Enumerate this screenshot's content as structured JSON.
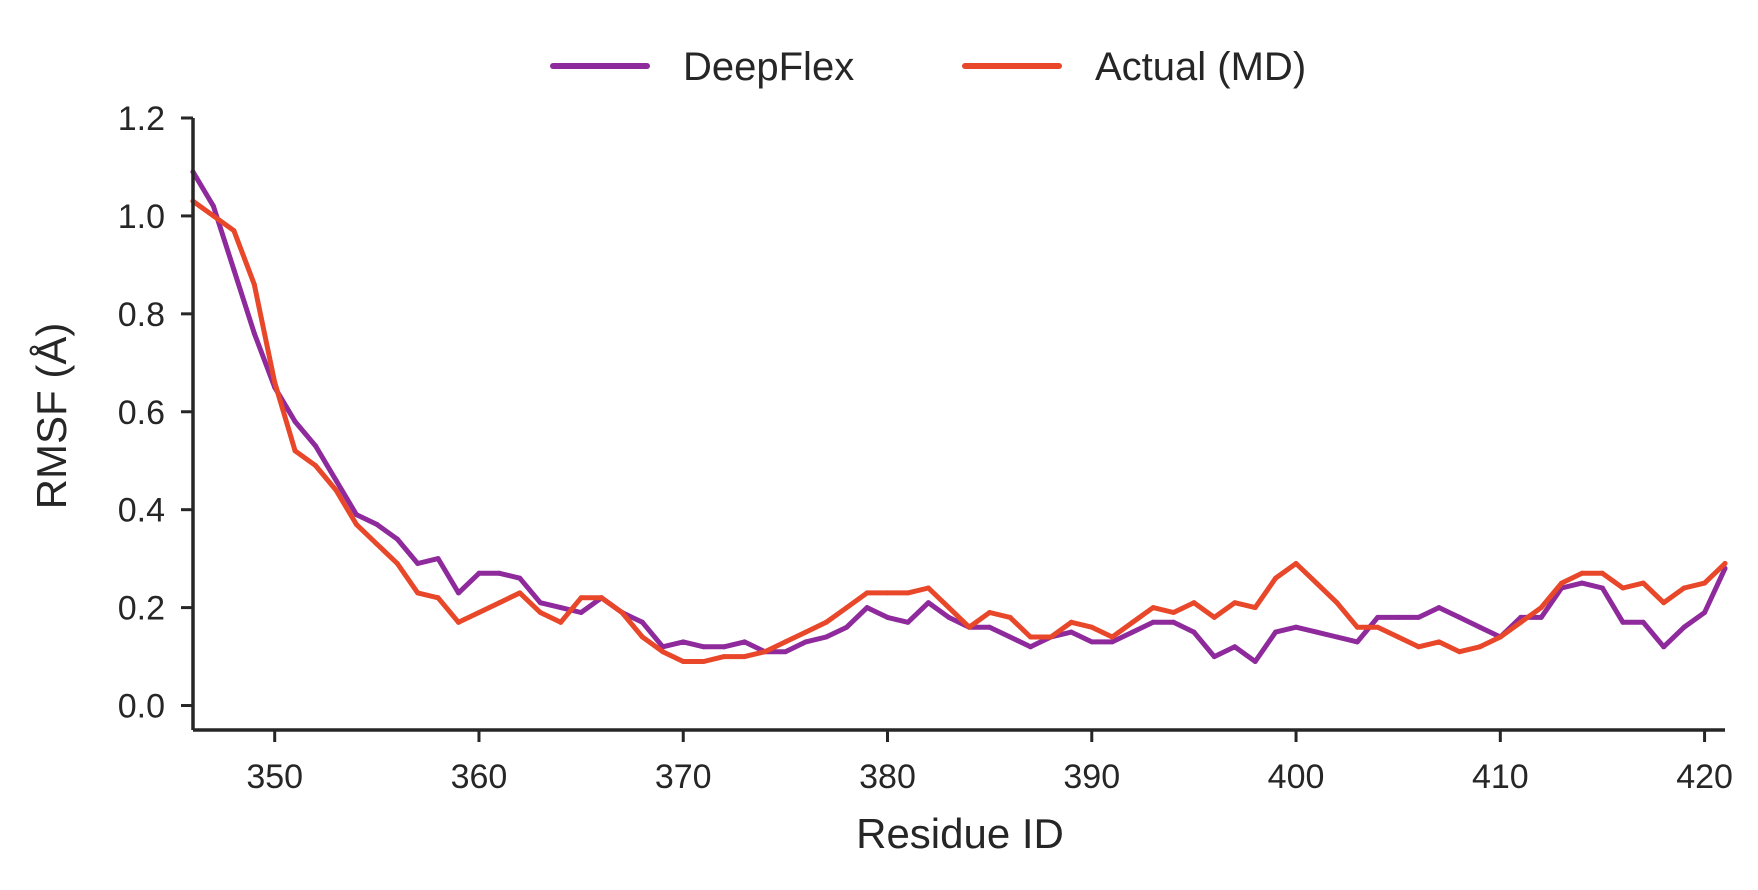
{
  "chart_data": {
    "type": "line",
    "xlabel": "Residue ID",
    "ylabel": "RMSF (Å)",
    "xlim": [
      346,
      421
    ],
    "ylim": [
      -0.05,
      1.2
    ],
    "xticks": [
      "350",
      "360",
      "370",
      "380",
      "390",
      "400",
      "410",
      "420"
    ],
    "yticks": [
      "0.0",
      "0.2",
      "0.4",
      "0.6",
      "0.8",
      "1.0",
      "1.2"
    ],
    "grid": false,
    "legend_position": "top-center",
    "x": [
      346,
      347,
      348,
      349,
      350,
      351,
      352,
      353,
      354,
      355,
      356,
      357,
      358,
      359,
      360,
      361,
      362,
      363,
      364,
      365,
      366,
      367,
      368,
      369,
      370,
      371,
      372,
      373,
      374,
      375,
      376,
      377,
      378,
      379,
      380,
      381,
      382,
      383,
      384,
      385,
      386,
      387,
      388,
      389,
      390,
      391,
      392,
      393,
      394,
      395,
      396,
      397,
      398,
      399,
      400,
      401,
      402,
      403,
      404,
      405,
      406,
      407,
      408,
      409,
      410,
      411,
      412,
      413,
      414,
      415,
      416,
      417,
      418,
      419,
      420,
      421
    ],
    "series": [
      {
        "name": "DeepFlex",
        "color": "#8e2a9c",
        "values": [
          1.09,
          1.02,
          0.89,
          0.76,
          0.65,
          0.58,
          0.53,
          0.46,
          0.39,
          0.37,
          0.34,
          0.29,
          0.3,
          0.23,
          0.27,
          0.27,
          0.26,
          0.21,
          0.2,
          0.19,
          0.22,
          0.19,
          0.17,
          0.12,
          0.13,
          0.12,
          0.12,
          0.13,
          0.11,
          0.11,
          0.13,
          0.14,
          0.16,
          0.2,
          0.18,
          0.17,
          0.21,
          0.18,
          0.16,
          0.16,
          0.14,
          0.12,
          0.14,
          0.15,
          0.13,
          0.13,
          0.15,
          0.17,
          0.17,
          0.15,
          0.1,
          0.12,
          0.09,
          0.15,
          0.16,
          0.15,
          0.14,
          0.13,
          0.18,
          0.18,
          0.18,
          0.2,
          0.18,
          0.16,
          0.14,
          0.18,
          0.18,
          0.24,
          0.25,
          0.24,
          0.17,
          0.17,
          0.12,
          0.16,
          0.19,
          0.28
        ]
      },
      {
        "name": "Actual (MD)",
        "color": "#e8472a",
        "values": [
          1.03,
          1.0,
          0.97,
          0.86,
          0.66,
          0.52,
          0.49,
          0.44,
          0.37,
          0.33,
          0.29,
          0.23,
          0.22,
          0.17,
          0.19,
          0.21,
          0.23,
          0.19,
          0.17,
          0.22,
          0.22,
          0.19,
          0.14,
          0.11,
          0.09,
          0.09,
          0.1,
          0.1,
          0.11,
          0.13,
          0.15,
          0.17,
          0.2,
          0.23,
          0.23,
          0.23,
          0.24,
          0.2,
          0.16,
          0.19,
          0.18,
          0.14,
          0.14,
          0.17,
          0.16,
          0.14,
          0.17,
          0.2,
          0.19,
          0.21,
          0.18,
          0.21,
          0.2,
          0.26,
          0.29,
          0.25,
          0.21,
          0.16,
          0.16,
          0.14,
          0.12,
          0.13,
          0.11,
          0.12,
          0.14,
          0.17,
          0.2,
          0.25,
          0.27,
          0.27,
          0.24,
          0.25,
          0.21,
          0.24,
          0.25,
          0.29
        ]
      }
    ]
  }
}
